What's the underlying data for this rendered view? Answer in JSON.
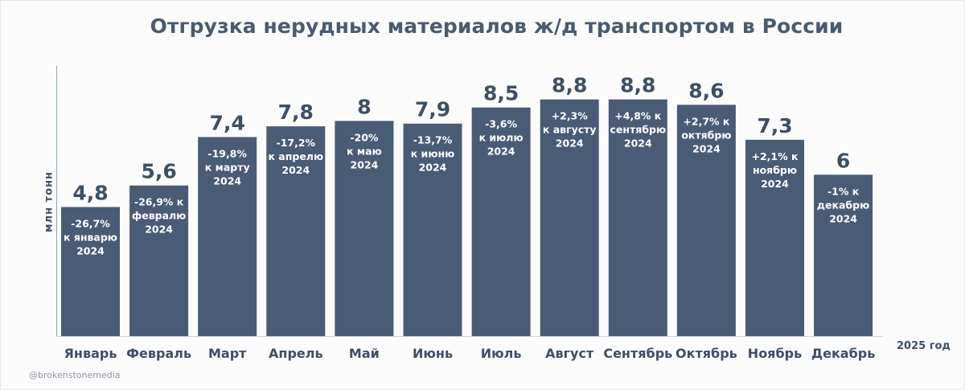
{
  "chart_data": {
    "type": "bar",
    "title": "Отгрузка нерудных материалов ж/д транспортом в России",
    "ylabel": "млн тонн",
    "xlabel": "2025 год",
    "categories": [
      "Январь",
      "Февраль",
      "Март",
      "Апрель",
      "Май",
      "Июнь",
      "Июль",
      "Август",
      "Сентябрь",
      "Октябрь",
      "Ноябрь",
      "Декабрь"
    ],
    "values": [
      4.8,
      5.6,
      7.4,
      7.8,
      8,
      7.9,
      8.5,
      8.8,
      8.8,
      8.6,
      7.3,
      6
    ],
    "value_labels": [
      "4,8",
      "5,6",
      "7,4",
      "7,8",
      "8",
      "7,9",
      "8,5",
      "8,8",
      "8,8",
      "8,6",
      "7,3",
      "6"
    ],
    "annotations": [
      [
        "-26,7%",
        "к январю",
        "2024"
      ],
      [
        "-26,9% к",
        "февралю",
        "2024"
      ],
      [
        "-19,8%",
        "к марту",
        "2024"
      ],
      [
        "-17,2%",
        "к апрелю",
        "2024"
      ],
      [
        "-20%",
        "к маю",
        "2024"
      ],
      [
        "-13,7%",
        "к июню",
        "2024"
      ],
      [
        "-3,6%",
        "к июлю",
        "2024"
      ],
      [
        "+2,3%",
        "к августу",
        "2024"
      ],
      [
        "+4,8% к",
        "сентябрю",
        "2024"
      ],
      [
        "+2,7% к",
        "октябрю",
        "2024"
      ],
      [
        "+2,1% к",
        "ноябрю",
        "2024"
      ],
      [
        "-1% к",
        "декабрю",
        "2024"
      ]
    ],
    "ylim": [
      0,
      10
    ],
    "grid": false,
    "legend": "none",
    "bar_color": "#4a5b75"
  },
  "watermark": "@brokenstonemedia"
}
